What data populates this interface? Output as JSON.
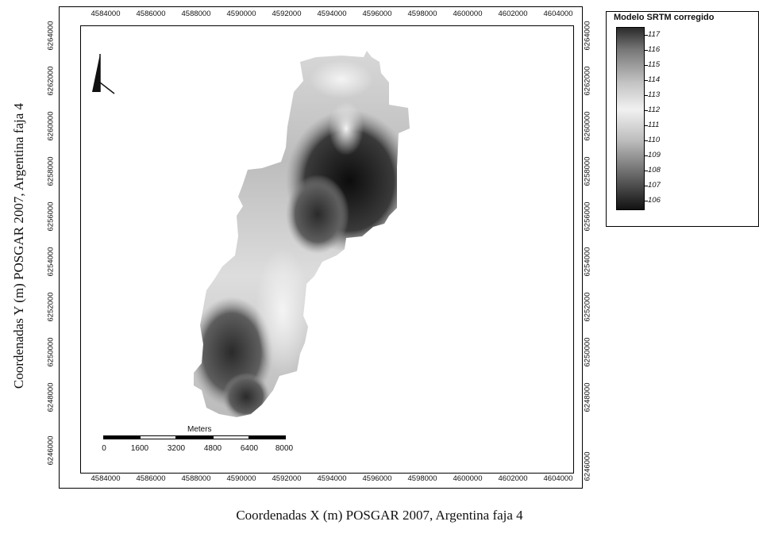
{
  "map": {
    "x_axis_label": "Coordenadas X (m) POSGAR 2007, Argentina faja 4",
    "y_axis_label": "Coordenadas Y (m) POSGAR 2007, Argentina faja 4",
    "x_ticks": [
      "4584000",
      "4586000",
      "4588000",
      "4590000",
      "4592000",
      "4594000",
      "4596000",
      "4598000",
      "4600000",
      "4602000",
      "4604000"
    ],
    "y_ticks": [
      "6264000",
      "6262000",
      "6260000",
      "6258000",
      "6256000",
      "6254000",
      "6252000",
      "6250000",
      "6248000",
      "6246000"
    ]
  },
  "legend": {
    "title": "Modelo SRTM corregido",
    "values": [
      "117",
      "116",
      "115",
      "114",
      "113",
      "112",
      "111",
      "110",
      "109",
      "108",
      "107",
      "106"
    ]
  },
  "scalebar": {
    "unit": "Meters",
    "labels": [
      "0",
      "1600",
      "3200",
      "4800",
      "6400",
      "8000"
    ]
  },
  "north_arrow": {
    "icon": "north-arrow-icon"
  }
}
